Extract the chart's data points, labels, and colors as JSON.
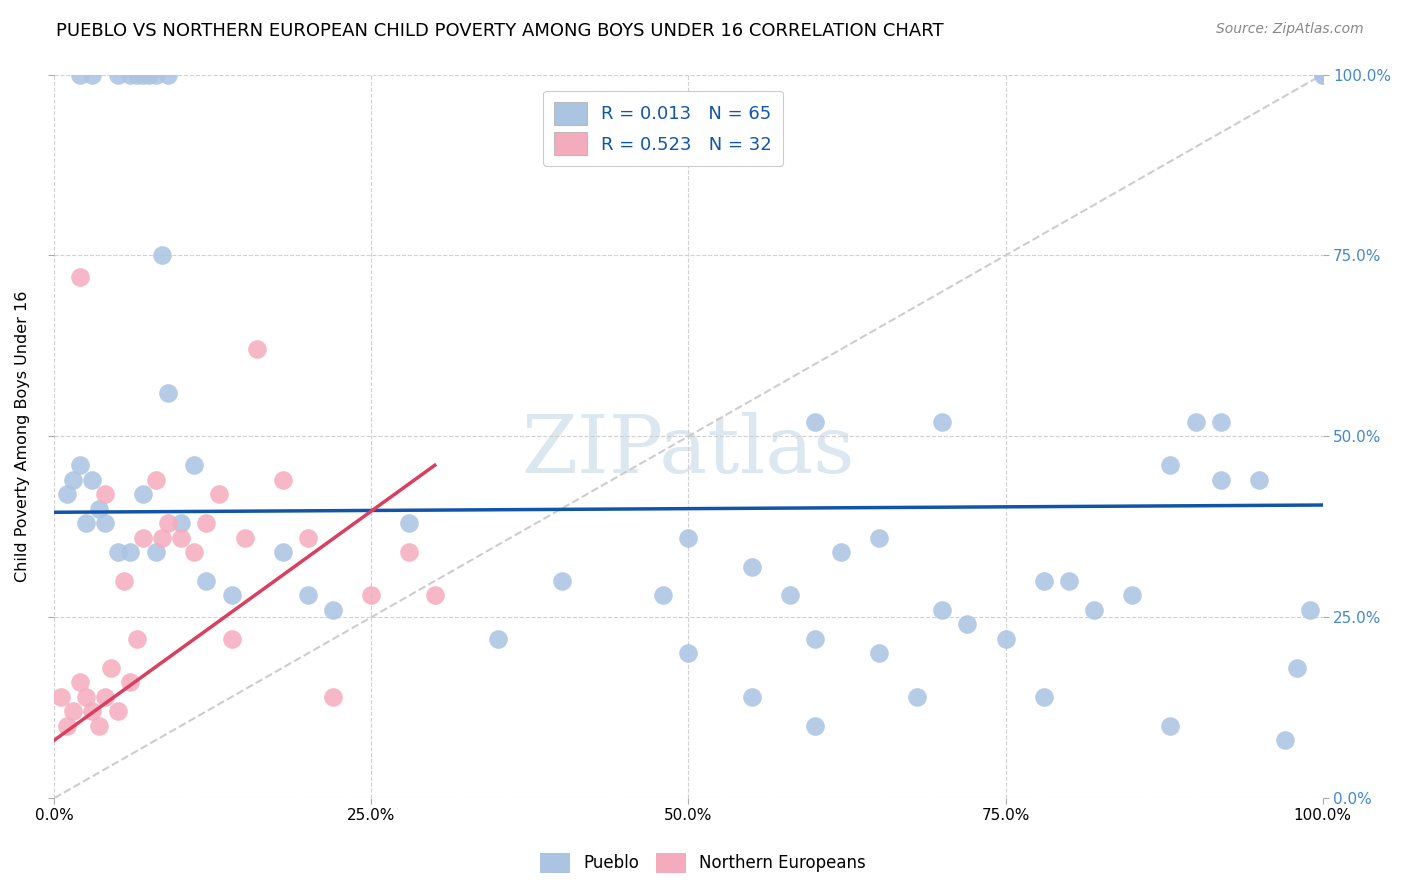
{
  "title": "PUEBLO VS NORTHERN EUROPEAN CHILD POVERTY AMONG BOYS UNDER 16 CORRELATION CHART",
  "source": "Source: ZipAtlas.com",
  "ylabel": "Child Poverty Among Boys Under 16",
  "pueblo_color": "#aac4e2",
  "northern_color": "#f5abbe",
  "blue_line_color": "#1155aa",
  "pink_line_color": "#d94060",
  "diagonal_color": "#c8c8c8",
  "background_color": "#ffffff",
  "grid_color": "#cccccc",
  "right_tick_color": "#4488cc",
  "pueblo_R": 0.013,
  "pueblo_N": 65,
  "northern_R": 0.523,
  "northern_N": 32,
  "pueblo_x": [
    0.02,
    0.03,
    0.05,
    0.06,
    0.065,
    0.07,
    0.075,
    0.08,
    0.085,
    0.09,
    0.01,
    0.015,
    0.02,
    0.025,
    0.03,
    0.035,
    0.04,
    0.05,
    0.06,
    0.07,
    0.08,
    0.09,
    0.1,
    0.11,
    0.12,
    0.14,
    0.18,
    0.2,
    0.22,
    0.28,
    0.35,
    0.4,
    0.48,
    0.5,
    0.55,
    0.58,
    0.6,
    0.62,
    0.65,
    0.68,
    0.7,
    0.72,
    0.75,
    0.78,
    0.8,
    0.82,
    0.85,
    0.88,
    0.9,
    0.92,
    0.95,
    0.97,
    0.98,
    0.99,
    1.0,
    0.6,
    0.65,
    0.78,
    0.88,
    0.92,
    0.5,
    0.55,
    0.6,
    0.7,
    1.0
  ],
  "pueblo_y": [
    1.0,
    1.0,
    1.0,
    1.0,
    1.0,
    1.0,
    1.0,
    1.0,
    0.75,
    1.0,
    0.42,
    0.44,
    0.46,
    0.38,
    0.44,
    0.4,
    0.38,
    0.34,
    0.34,
    0.42,
    0.34,
    0.56,
    0.38,
    0.46,
    0.3,
    0.28,
    0.34,
    0.28,
    0.26,
    0.38,
    0.22,
    0.3,
    0.28,
    0.36,
    0.32,
    0.28,
    0.22,
    0.34,
    0.36,
    0.14,
    0.26,
    0.24,
    0.22,
    0.3,
    0.3,
    0.26,
    0.28,
    0.46,
    0.52,
    0.44,
    0.44,
    0.08,
    0.18,
    0.26,
    1.0,
    0.52,
    0.2,
    0.14,
    0.1,
    0.52,
    0.2,
    0.14,
    0.1,
    0.52,
    1.0
  ],
  "northern_x": [
    0.005,
    0.01,
    0.015,
    0.02,
    0.025,
    0.03,
    0.035,
    0.04,
    0.045,
    0.05,
    0.055,
    0.06,
    0.065,
    0.07,
    0.08,
    0.085,
    0.09,
    0.1,
    0.11,
    0.12,
    0.13,
    0.14,
    0.15,
    0.16,
    0.18,
    0.2,
    0.22,
    0.25,
    0.28,
    0.3,
    0.02,
    0.04
  ],
  "northern_y": [
    0.14,
    0.1,
    0.12,
    0.16,
    0.14,
    0.12,
    0.1,
    0.14,
    0.18,
    0.12,
    0.3,
    0.16,
    0.22,
    0.36,
    0.44,
    0.36,
    0.38,
    0.36,
    0.34,
    0.38,
    0.42,
    0.22,
    0.36,
    0.62,
    0.44,
    0.36,
    0.14,
    0.28,
    0.34,
    0.28,
    0.72,
    0.42
  ],
  "blue_line_x": [
    0.0,
    1.0
  ],
  "blue_line_y": [
    0.395,
    0.405
  ],
  "pink_line_x": [
    0.0,
    0.3
  ],
  "pink_line_y": [
    0.08,
    0.46
  ],
  "diag_line_x": [
    0.0,
    1.0
  ],
  "diag_line_y": [
    0.0,
    1.0
  ],
  "x_ticks": [
    0.0,
    0.25,
    0.5,
    0.75,
    1.0
  ],
  "x_tick_labels": [
    "0.0%",
    "25.0%",
    "50.0%",
    "75.0%",
    "100.0%"
  ],
  "y_ticks": [
    0.0,
    0.25,
    0.5,
    0.75,
    1.0
  ],
  "y_tick_labels_right": [
    "0.0%",
    "25.0%",
    "50.0%",
    "75.0%",
    "100.0%"
  ]
}
